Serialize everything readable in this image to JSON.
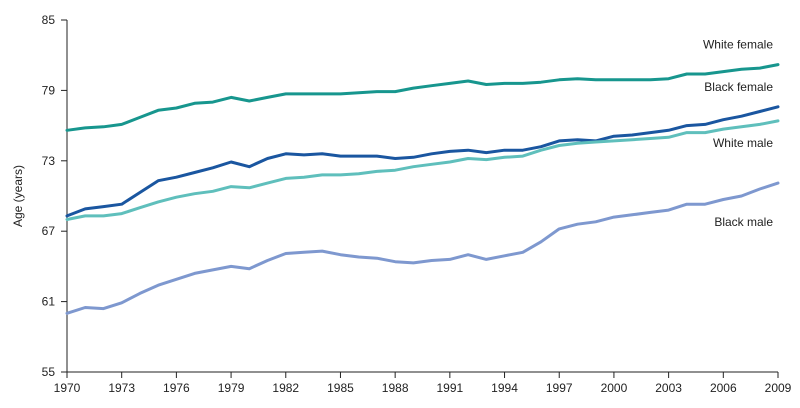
{
  "chart_data": {
    "type": "line",
    "title": "",
    "xlabel": "",
    "ylabel": "Age (years)",
    "xlim": [
      1970,
      2009
    ],
    "ylim": [
      55,
      85
    ],
    "x_ticks": [
      1970,
      1973,
      1976,
      1979,
      1982,
      1985,
      1988,
      1991,
      1994,
      1997,
      2000,
      2003,
      2006,
      2009
    ],
    "y_ticks": [
      55,
      61,
      67,
      73,
      79,
      85
    ],
    "x": [
      1970,
      1971,
      1972,
      1973,
      1974,
      1975,
      1976,
      1977,
      1978,
      1979,
      1980,
      1981,
      1982,
      1983,
      1984,
      1985,
      1986,
      1987,
      1988,
      1989,
      1990,
      1991,
      1992,
      1993,
      1994,
      1995,
      1996,
      1997,
      1998,
      1999,
      2000,
      2001,
      2002,
      2003,
      2004,
      2005,
      2006,
      2007,
      2008,
      2009
    ],
    "series": [
      {
        "name": "White female",
        "color": "#17968e",
        "values": [
          75.6,
          75.8,
          75.9,
          76.1,
          76.7,
          77.3,
          77.5,
          77.9,
          78.0,
          78.4,
          78.1,
          78.4,
          78.7,
          78.7,
          78.7,
          78.7,
          78.8,
          78.9,
          78.9,
          79.2,
          79.4,
          79.6,
          79.8,
          79.5,
          79.6,
          79.6,
          79.7,
          79.9,
          80.0,
          79.9,
          79.9,
          79.9,
          79.9,
          80.0,
          80.4,
          80.4,
          80.6,
          80.8,
          80.9,
          81.2
        ]
      },
      {
        "name": "Black female",
        "color": "#1a56a0",
        "values": [
          68.3,
          68.9,
          69.1,
          69.3,
          70.3,
          71.3,
          71.6,
          72.0,
          72.4,
          72.9,
          72.5,
          73.2,
          73.6,
          73.5,
          73.6,
          73.4,
          73.4,
          73.4,
          73.2,
          73.3,
          73.6,
          73.8,
          73.9,
          73.7,
          73.9,
          73.9,
          74.2,
          74.7,
          74.8,
          74.7,
          75.1,
          75.2,
          75.4,
          75.6,
          76.0,
          76.1,
          76.5,
          76.8,
          77.2,
          77.6
        ]
      },
      {
        "name": "White male",
        "color": "#5fbfbc",
        "values": [
          68.0,
          68.3,
          68.3,
          68.5,
          69.0,
          69.5,
          69.9,
          70.2,
          70.4,
          70.8,
          70.7,
          71.1,
          71.5,
          71.6,
          71.8,
          71.8,
          71.9,
          72.1,
          72.2,
          72.5,
          72.7,
          72.9,
          73.2,
          73.1,
          73.3,
          73.4,
          73.9,
          74.3,
          74.5,
          74.6,
          74.7,
          74.8,
          74.9,
          75.0,
          75.4,
          75.4,
          75.7,
          75.9,
          76.1,
          76.4
        ]
      },
      {
        "name": "Black male",
        "color": "#7e98cf",
        "values": [
          60.0,
          60.5,
          60.4,
          60.9,
          61.7,
          62.4,
          62.9,
          63.4,
          63.7,
          64.0,
          63.8,
          64.5,
          65.1,
          65.2,
          65.3,
          65.0,
          64.8,
          64.7,
          64.4,
          64.3,
          64.5,
          64.6,
          65.0,
          64.6,
          64.9,
          65.2,
          66.1,
          67.2,
          67.6,
          67.8,
          68.2,
          68.4,
          68.6,
          68.8,
          69.3,
          69.3,
          69.7,
          70.0,
          70.6,
          71.1
        ]
      }
    ]
  }
}
